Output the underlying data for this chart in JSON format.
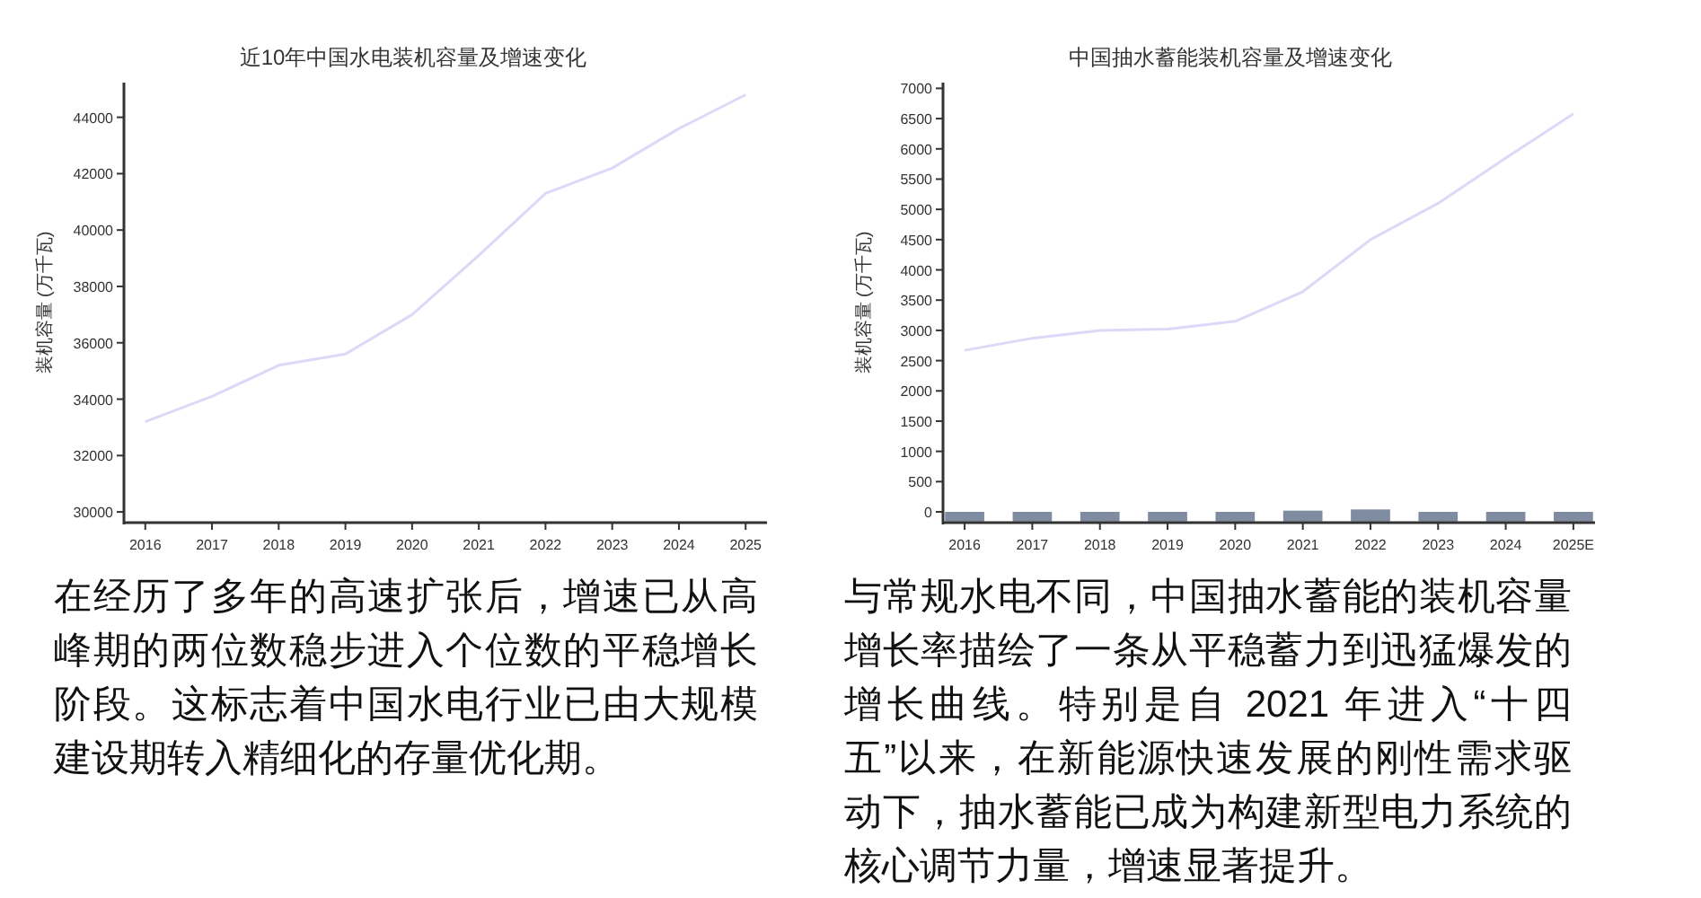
{
  "chart_data": [
    {
      "type": "line",
      "title": "近10年中国水电装机容量及增速变化",
      "ylabel": "装机容量 (万千瓦)",
      "categories": [
        "2016",
        "2017",
        "2018",
        "2019",
        "2020",
        "2021",
        "2022",
        "2023",
        "2024",
        "2025"
      ],
      "series": [
        {
          "color": "#dcd8f8",
          "values": [
            33200,
            34100,
            35200,
            35600,
            37000,
            39100,
            41300,
            42200,
            43600,
            44800
          ]
        }
      ],
      "ylim": [
        29620,
        45230
      ],
      "yticks": [
        30000,
        32000,
        34000,
        36000,
        38000,
        40000,
        42000,
        44000
      ],
      "annotations": [
        "在经历了多年的高速扩张后，增速已从高峰期的两位数稳步进入个位数的平稳增长阶段。这标志着中国水电行业已由大规模建设期转入精细化的存量优化期。"
      ]
    },
    {
      "type": "line",
      "title": "中国抽水蓄能装机容量及增速变化",
      "ylabel": "装机容量 (万千瓦)",
      "categories": [
        "2016",
        "2017",
        "2018",
        "2019",
        "2020",
        "2021",
        "2022",
        "2023",
        "2024",
        "2025E"
      ],
      "series": [
        {
          "type": "bar",
          "color": "#7f8ba0",
          "base": [
            -160,
            -160,
            -160,
            -160,
            -160,
            -160,
            -160,
            -160,
            -160,
            -160
          ],
          "values": [
            160,
            160,
            160,
            160,
            160,
            180,
            200,
            160,
            160,
            160
          ]
        },
        {
          "color": "#dcd8f8",
          "values": [
            2670,
            2870,
            3000,
            3020,
            3150,
            3640,
            4500,
            5100,
            5850,
            6580
          ]
        }
      ],
      "ylim": [
        -178,
        7095
      ],
      "yticks": [
        0,
        500,
        1000,
        1500,
        2000,
        2500,
        3000,
        3500,
        4000,
        4500,
        5000,
        5500,
        6000,
        6500,
        7000
      ],
      "annotations": [
        "与常规水电不同，中国抽水蓄能的装机容量增长率描绘了一条从平稳蓄力到迅猛爆发的增长曲线。特别是自 2021 年进入“十四五”以来，在新能源快速发展的刚性需求驱动下，抽水蓄能已成为构建新型电力系统的核心调节力量，增速显著提升。"
      ]
    }
  ]
}
